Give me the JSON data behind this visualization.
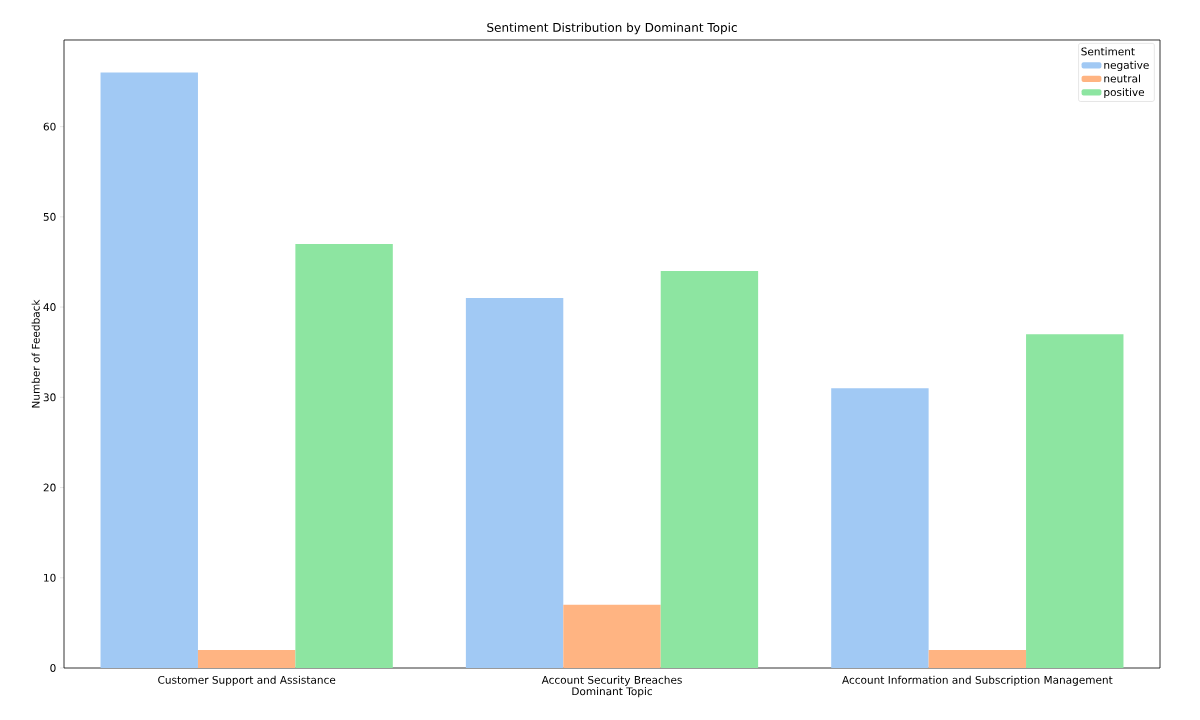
{
  "chart_data": {
    "type": "bar",
    "title": "Sentiment Distribution by Dominant Topic",
    "xlabel": "Dominant Topic",
    "ylabel": "Number of Feedback",
    "legend_title": "Sentiment",
    "categories": [
      "Customer Support and Assistance",
      "Account Security Breaches",
      "Account Information and Subscription Management"
    ],
    "series": [
      {
        "name": "negative",
        "color": "#a1c9f4",
        "values": [
          66,
          41,
          31
        ]
      },
      {
        "name": "neutral",
        "color": "#ffb482",
        "values": [
          2,
          7,
          2
        ]
      },
      {
        "name": "positive",
        "color": "#8de5a1",
        "values": [
          47,
          44,
          37
        ]
      }
    ],
    "ylim": [
      0,
      69.6
    ],
    "yticks": [
      0,
      10,
      20,
      30,
      40,
      50,
      60
    ],
    "grid": false,
    "legend": "top right"
  }
}
